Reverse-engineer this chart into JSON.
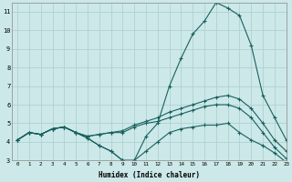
{
  "xlabel": "Humidex (Indice chaleur)",
  "bg_color": "#cce8e8",
  "grid_color": "#aacece",
  "line_color": "#1a6060",
  "hours": [
    0,
    1,
    2,
    3,
    4,
    5,
    6,
    7,
    8,
    9,
    10,
    11,
    12,
    13,
    14,
    15,
    16,
    17,
    18,
    19,
    20,
    21,
    22,
    23
  ],
  "series_max": [
    4.1,
    4.5,
    4.4,
    4.7,
    4.8,
    4.5,
    4.2,
    3.8,
    3.5,
    3.0,
    3.0,
    4.3,
    5.0,
    7.0,
    8.5,
    9.8,
    10.5,
    11.5,
    11.2,
    10.8,
    9.2,
    6.5,
    5.3,
    4.1
  ],
  "series_upper": [
    4.1,
    4.5,
    4.4,
    4.7,
    4.8,
    4.5,
    4.3,
    4.4,
    4.5,
    4.6,
    4.9,
    5.1,
    5.3,
    5.6,
    5.8,
    6.0,
    6.2,
    6.4,
    6.5,
    6.3,
    5.8,
    5.0,
    4.1,
    3.5
  ],
  "series_mean": [
    4.1,
    4.5,
    4.4,
    4.7,
    4.8,
    4.5,
    4.3,
    4.4,
    4.5,
    4.5,
    4.8,
    5.0,
    5.1,
    5.3,
    5.5,
    5.7,
    5.9,
    6.0,
    6.0,
    5.8,
    5.3,
    4.5,
    3.7,
    3.1
  ],
  "series_min": [
    4.1,
    4.5,
    4.4,
    4.7,
    4.8,
    4.5,
    4.2,
    3.8,
    3.5,
    3.0,
    3.0,
    3.5,
    4.0,
    4.5,
    4.7,
    4.8,
    4.9,
    4.9,
    5.0,
    4.5,
    4.1,
    3.8,
    3.4,
    2.9
  ],
  "ylim": [
    3,
    11.5
  ],
  "xlim": [
    -0.5,
    23
  ]
}
